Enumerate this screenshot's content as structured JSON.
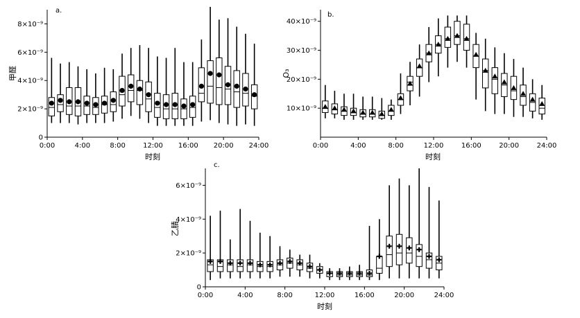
{
  "chart_data": [
    {
      "type": "box",
      "panel_label": "a.",
      "ylabel": "甲醛",
      "xlabel": "时刻",
      "xlim": [
        0,
        24
      ],
      "ylim": [
        0,
        9e-09
      ],
      "xticks": [
        0,
        4,
        8,
        12,
        16,
        20,
        24
      ],
      "xtick_labels": [
        "0:00",
        "4:00",
        "8:00",
        "12:00",
        "16:00",
        "20:00",
        "24:00"
      ],
      "yticks": [
        0,
        2e-09,
        4e-09,
        6e-09,
        8e-09
      ],
      "ytick_labels": [
        "0",
        "2×10⁻⁹",
        "4×10⁻⁹",
        "6×10⁻⁹",
        "8×10⁻⁹"
      ],
      "mean_marker": "circle",
      "hours": [
        0.5,
        1.5,
        2.5,
        3.5,
        4.5,
        5.5,
        6.5,
        7.5,
        8.5,
        9.5,
        10.5,
        11.5,
        12.5,
        13.5,
        14.5,
        15.5,
        16.5,
        17.5,
        18.5,
        19.5,
        20.5,
        21.5,
        22.5,
        23.5
      ],
      "whisker_low": [
        1e-09,
        1e-09,
        1e-09,
        9e-10,
        1e-09,
        1e-09,
        1e-09,
        1.1e-09,
        1.3e-09,
        1.5e-09,
        1.3e-09,
        1e-09,
        8e-10,
        8e-10,
        8e-10,
        8e-10,
        8e-10,
        1.1e-09,
        1.2e-09,
        1e-09,
        9e-10,
        8e-10,
        9e-10,
        8e-10
      ],
      "q1": [
        1.5e-09,
        1.8e-09,
        1.6e-09,
        1.5e-09,
        1.6e-09,
        1.6e-09,
        1.7e-09,
        1.8e-09,
        2.2e-09,
        2.5e-09,
        2.3e-09,
        1.8e-09,
        1.4e-09,
        1.3e-09,
        1.3e-09,
        1.3e-09,
        1.4e-09,
        2.5e-09,
        2.4e-09,
        2.3e-09,
        2.3e-09,
        2.1e-09,
        2.2e-09,
        2e-09
      ],
      "median": [
        2.1e-09,
        2.3e-09,
        2.2e-09,
        2.2e-09,
        2.2e-09,
        2.1e-09,
        2.3e-09,
        2.3e-09,
        3e-09,
        3.3e-09,
        3.3e-09,
        2.7e-09,
        2.1e-09,
        2e-09,
        2e-09,
        2e-09,
        2.1e-09,
        3.1e-09,
        3.6e-09,
        3.5e-09,
        3.4e-09,
        3.2e-09,
        3.1e-09,
        2.9e-09
      ],
      "q3": [
        2.8e-09,
        3e-09,
        3.5e-09,
        3.5e-09,
        2.9e-09,
        2.8e-09,
        2.9e-09,
        3.2e-09,
        4.3e-09,
        4.4e-09,
        4e-09,
        3.9e-09,
        3.1e-09,
        3e-09,
        3.1e-09,
        2.7e-09,
        2.9e-09,
        4.9e-09,
        5.4e-09,
        5.6e-09,
        5e-09,
        4.7e-09,
        4.5e-09,
        3.7e-09
      ],
      "whisker_high": [
        5.6e-09,
        5.2e-09,
        5.3e-09,
        5e-09,
        4.8e-09,
        4.5e-09,
        4.9e-09,
        4.8e-09,
        5.9e-09,
        6.3e-09,
        6.5e-09,
        6.3e-09,
        5.7e-09,
        5.6e-09,
        6.3e-09,
        5.3e-09,
        5.3e-09,
        6.9e-09,
        9.2e-09,
        8.3e-09,
        8.4e-09,
        7.8e-09,
        7.3e-09,
        6.6e-09
      ],
      "mean": [
        2.4e-09,
        2.6e-09,
        2.5e-09,
        2.5e-09,
        2.4e-09,
        2.3e-09,
        2.4e-09,
        2.6e-09,
        3.3e-09,
        3.6e-09,
        3.4e-09,
        3e-09,
        2.4e-09,
        2.3e-09,
        2.3e-09,
        2.2e-09,
        2.3e-09,
        3.6e-09,
        4.5e-09,
        4.4e-09,
        3.7e-09,
        3.6e-09,
        3.4e-09,
        3e-09
      ]
    },
    {
      "type": "box",
      "panel_label": "b.",
      "ylabel": "O₃",
      "xlabel": "时刻",
      "xlim": [
        0,
        24
      ],
      "ylim": [
        0,
        4.4e-08
      ],
      "xticks": [
        0,
        4,
        8,
        12,
        16,
        20,
        24
      ],
      "xtick_labels": [
        "0:00",
        "4:00",
        "8:00",
        "12:00",
        "16:00",
        "20:00",
        "24:00"
      ],
      "yticks": [
        1e-08,
        2e-08,
        3e-08,
        4e-08
      ],
      "ytick_labels": [
        "10×10⁻⁹",
        "20×10⁻⁹",
        "30×10⁻⁹",
        "40×10⁻⁹"
      ],
      "mean_marker": "triangle",
      "hours": [
        0.5,
        1.5,
        2.5,
        3.5,
        4.5,
        5.5,
        6.5,
        7.5,
        8.5,
        9.5,
        10.5,
        11.5,
        12.5,
        13.5,
        14.5,
        15.5,
        16.5,
        17.5,
        18.5,
        19.5,
        20.5,
        21.5,
        22.5,
        23.5
      ],
      "whisker_low": [
        6.5e-09,
        6.5e-09,
        6e-09,
        6e-09,
        6e-09,
        6e-09,
        6e-09,
        6e-09,
        8e-09,
        1.1e-08,
        1.4e-08,
        1.9e-08,
        2.1e-08,
        2.4e-08,
        2.6e-08,
        2.4e-08,
        1.3e-08,
        9e-09,
        8e-09,
        8e-09,
        7e-09,
        7e-09,
        6.5e-09,
        6e-09
      ],
      "q1": [
        8.5e-09,
        8e-09,
        7.5e-09,
        7.5e-09,
        7e-09,
        7e-09,
        6.5e-09,
        7.5e-09,
        1.1e-08,
        1.6e-08,
        2.1e-08,
        2.6e-08,
        2.9e-08,
        3.1e-08,
        3.2e-08,
        3e-08,
        2.4e-08,
        1.7e-08,
        1.5e-08,
        1.4e-08,
        1.3e-08,
        1.1e-08,
        9e-09,
        8e-09
      ],
      "median": [
        1e-08,
        9.5e-09,
        9e-09,
        8.5e-09,
        8e-09,
        8e-09,
        7.5e-09,
        9e-09,
        1.3e-08,
        1.9e-08,
        2.4e-08,
        2.9e-08,
        3.2e-08,
        3.4e-08,
        3.5e-08,
        3.4e-08,
        2.8e-08,
        2.3e-08,
        2e-08,
        1.8e-08,
        1.6e-08,
        1.4e-08,
        1.2e-08,
        1e-08
      ],
      "q3": [
        1.25e-08,
        1.15e-08,
        1.05e-08,
        1e-08,
        9.5e-09,
        9.5e-09,
        9e-09,
        1.1e-08,
        1.5e-08,
        2.1e-08,
        2.7e-08,
        3.2e-08,
        3.5e-08,
        3.8e-08,
        4e-08,
        3.9e-08,
        3.2e-08,
        2.7e-08,
        2.4e-08,
        2.2e-08,
        2.1e-08,
        1.8e-08,
        1.5e-08,
        1.35e-08
      ],
      "whisker_high": [
        1.8e-08,
        1.6e-08,
        1.5e-08,
        1.5e-08,
        1.4e-08,
        1.4e-08,
        1.35e-08,
        1.3e-08,
        2.2e-08,
        2.6e-08,
        3.2e-08,
        3.8e-08,
        4.1e-08,
        4.2e-08,
        4.2e-08,
        4.2e-08,
        3.6e-08,
        3.4e-08,
        3.1e-08,
        2.9e-08,
        2.7e-08,
        2.4e-08,
        2e-08,
        1.8e-08
      ],
      "mean": [
        1.05e-08,
        1e-08,
        9.5e-09,
        9e-09,
        8.5e-09,
        8.5e-09,
        8e-09,
        9.5e-09,
        1.35e-08,
        1.85e-08,
        2.45e-08,
        2.9e-08,
        3.2e-08,
        3.4e-08,
        3.5e-08,
        3.4e-08,
        2.85e-08,
        2.3e-08,
        2.1e-08,
        1.9e-08,
        1.7e-08,
        1.5e-08,
        1.3e-08,
        1.15e-08
      ]
    },
    {
      "type": "box",
      "panel_label": "c.",
      "ylabel": "乙腈",
      "xlabel": "时刻",
      "xlim": [
        0,
        24
      ],
      "ylim": [
        0,
        7e-09
      ],
      "xticks": [
        0,
        4,
        8,
        12,
        16,
        20,
        24
      ],
      "xtick_labels": [
        "0:00",
        "4:00",
        "8:00",
        "12:00",
        "16:00",
        "20:00",
        "24:00"
      ],
      "yticks": [
        0,
        2e-09,
        4e-09,
        6e-09
      ],
      "ytick_labels": [
        "0",
        "2×10⁻⁹",
        "4×10⁻⁹",
        "6×10⁻⁹"
      ],
      "mean_marker": "cross",
      "hours": [
        0.5,
        1.5,
        2.5,
        3.5,
        4.5,
        5.5,
        6.5,
        7.5,
        8.5,
        9.5,
        10.5,
        11.5,
        12.5,
        13.5,
        14.5,
        15.5,
        16.5,
        17.5,
        18.5,
        19.5,
        20.5,
        21.5,
        22.5,
        23.5
      ],
      "whisker_low": [
        4e-10,
        5e-10,
        5e-10,
        5e-10,
        5e-10,
        5e-10,
        5e-10,
        6e-10,
        6e-10,
        6e-10,
        5e-10,
        5e-10,
        4e-10,
        4e-10,
        4e-10,
        4e-10,
        4e-10,
        4e-10,
        5e-10,
        5e-10,
        5e-10,
        5e-10,
        5e-10,
        5e-10
      ],
      "q1": [
        9e-10,
        9e-10,
        9e-10,
        9e-10,
        9e-10,
        9e-10,
        9e-10,
        1e-09,
        1.1e-09,
        1e-09,
        9e-10,
        8e-10,
        6e-10,
        6e-10,
        6e-10,
        6e-10,
        6e-10,
        8e-10,
        1.2e-09,
        1.3e-09,
        1.4e-09,
        1.2e-09,
        1.1e-09,
        1e-09
      ],
      "median": [
        1.3e-09,
        1.2e-09,
        1.3e-09,
        1.2e-09,
        1.3e-09,
        1.2e-09,
        1.2e-09,
        1.3e-09,
        1.4e-09,
        1.3e-09,
        1.1e-09,
        1e-09,
        8e-10,
        7e-10,
        7e-10,
        7e-10,
        7e-10,
        1.1e-09,
        1.9e-09,
        2e-09,
        2e-09,
        1.8e-09,
        1.6e-09,
        1.4e-09
      ],
      "q3": [
        1.6e-09,
        1.6e-09,
        1.6e-09,
        1.6e-09,
        1.6e-09,
        1.5e-09,
        1.5e-09,
        1.6e-09,
        1.7e-09,
        1.6e-09,
        1.4e-09,
        1.2e-09,
        9e-10,
        9e-10,
        9e-10,
        9e-10,
        1e-09,
        1.8e-09,
        3e-09,
        3.1e-09,
        2.9e-09,
        2.5e-09,
        2e-09,
        1.8e-09
      ],
      "whisker_high": [
        4.2e-09,
        4.5e-09,
        2.8e-09,
        4.6e-09,
        3.9e-09,
        3.2e-09,
        3e-09,
        2.4e-09,
        2.2e-09,
        1.9e-09,
        1.9e-09,
        1.4e-09,
        1.1e-09,
        1.1e-09,
        1.2e-09,
        1.3e-09,
        3.6e-09,
        4e-09,
        6e-09,
        6.4e-09,
        6e-09,
        7e-09,
        5.9e-09,
        5.1e-09
      ],
      "mean": [
        1.5e-09,
        1.5e-09,
        1.4e-09,
        1.4e-09,
        1.4e-09,
        1.3e-09,
        1.3e-09,
        1.4e-09,
        1.5e-09,
        1.4e-09,
        1.2e-09,
        1e-09,
        8e-10,
        8e-10,
        8e-10,
        8e-10,
        8e-10,
        1.8e-09,
        2.4e-09,
        2.4e-09,
        2.3e-09,
        2.2e-09,
        1.8e-09,
        1.6e-09
      ]
    }
  ]
}
